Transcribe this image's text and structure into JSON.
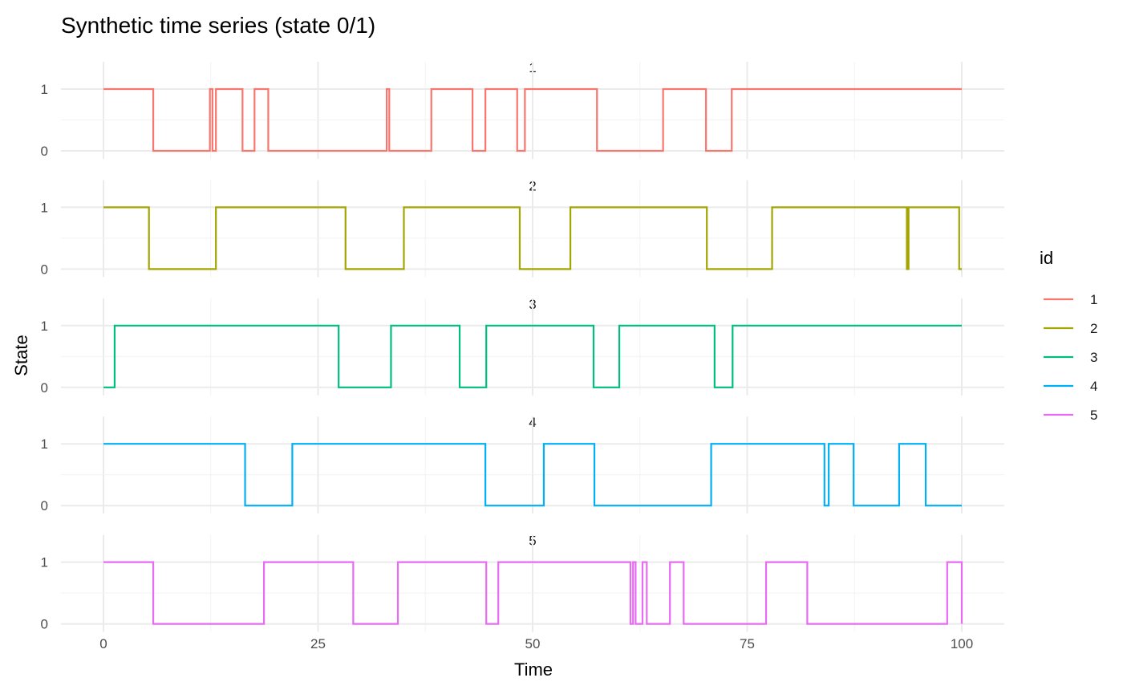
{
  "chart_data": {
    "type": "line",
    "subtype": "step",
    "title": "Synthetic time series (state 0/1)",
    "xlabel": "Time",
    "ylabel": "State",
    "xlim": [
      0,
      100
    ],
    "ylim": [
      0,
      1
    ],
    "x_ticks": [
      0,
      25,
      50,
      75,
      100
    ],
    "y_ticks": [
      0,
      1
    ],
    "grid": true,
    "facet_by": "id",
    "legend": {
      "title": "id",
      "position": "right"
    },
    "series": [
      {
        "name": "1",
        "color": "#F8766D",
        "x": [
          0,
          5.8,
          12.4,
          12.7,
          13.1,
          16.2,
          17.6,
          19.2,
          33.0,
          33.3,
          38.2,
          43.0,
          44.5,
          48.2,
          49.1,
          57.5,
          65.2,
          70.2,
          73.2,
          100
        ],
        "values": [
          1,
          0,
          1,
          0,
          1,
          0,
          1,
          0,
          1,
          0,
          1,
          0,
          1,
          0,
          1,
          0,
          1,
          0,
          1,
          1
        ]
      },
      {
        "name": "2",
        "color": "#A3A500",
        "x": [
          0,
          5.3,
          13.1,
          28.2,
          35.0,
          48.5,
          54.4,
          70.3,
          77.9,
          93.6,
          93.8,
          99.7,
          100
        ],
        "values": [
          1,
          0,
          1,
          0,
          1,
          0,
          1,
          0,
          1,
          0,
          1,
          0,
          0
        ]
      },
      {
        "name": "3",
        "color": "#00BF7D",
        "x": [
          0,
          1.3,
          27.4,
          33.5,
          41.5,
          44.6,
          57.1,
          60.1,
          71.2,
          73.3,
          100
        ],
        "values": [
          0,
          1,
          0,
          1,
          0,
          1,
          0,
          1,
          0,
          1,
          1
        ]
      },
      {
        "name": "4",
        "color": "#00B0F6",
        "x": [
          0,
          16.5,
          22.0,
          44.5,
          51.3,
          57.2,
          70.8,
          84.0,
          84.5,
          87.4,
          92.7,
          95.8,
          100
        ],
        "values": [
          1,
          0,
          1,
          0,
          1,
          0,
          1,
          0,
          1,
          0,
          1,
          0,
          0
        ]
      },
      {
        "name": "5",
        "color": "#E76BF3",
        "x": [
          0,
          5.8,
          18.7,
          29.1,
          34.3,
          44.6,
          46.0,
          61.4,
          61.7,
          62.0,
          62.8,
          63.3,
          66.0,
          67.6,
          77.2,
          82.0,
          98.3,
          100
        ],
        "values": [
          1,
          0,
          1,
          0,
          1,
          0,
          1,
          0,
          1,
          0,
          1,
          0,
          1,
          0,
          1,
          0,
          1,
          0
        ]
      }
    ]
  }
}
